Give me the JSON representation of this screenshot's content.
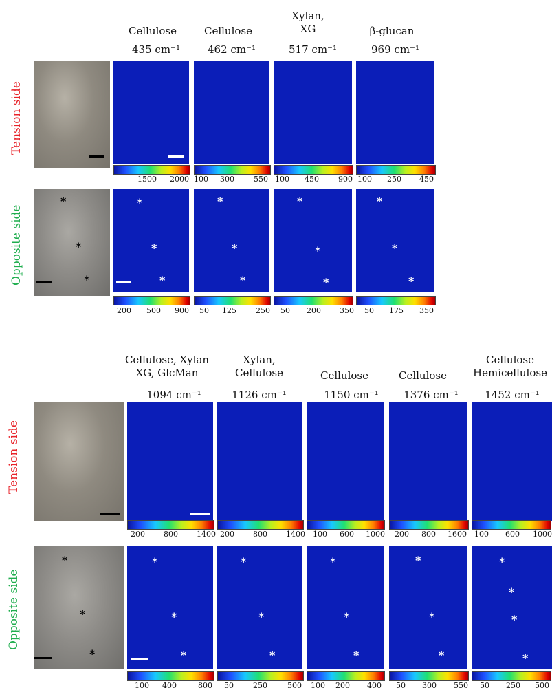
{
  "panel_top": {
    "headers": [
      {
        "line1": "Cellulose",
        "line2": "",
        "wavenumber": "435 cm⁻¹"
      },
      {
        "line1": "Cellulose",
        "line2": "",
        "wavenumber": "462 cm⁻¹"
      },
      {
        "line1": "Xylan,",
        "line2": "XG",
        "wavenumber": "517 cm⁻¹"
      },
      {
        "line1": "β-glucan",
        "line2": "",
        "wavenumber": "969 cm⁻¹"
      }
    ],
    "rows": [
      {
        "label": "Tension side",
        "color": "#e8232a",
        "colorbars": [
          [
            "1500",
            "2000"
          ],
          [
            "100",
            "300",
            "550"
          ],
          [
            "100",
            "450",
            "900"
          ],
          [
            "100",
            "250",
            "450"
          ]
        ]
      },
      {
        "label": "Opposite side",
        "color": "#1fae4e",
        "colorbars": [
          [
            "200",
            "500",
            "900"
          ],
          [
            "50",
            "125",
            "250"
          ],
          [
            "50",
            "200",
            "350"
          ],
          [
            "50",
            "175",
            "350"
          ]
        ]
      }
    ]
  },
  "panel_bottom": {
    "headers": [
      {
        "line1": "Cellulose, Xylan",
        "line2": "XG, GlcMan",
        "wavenumber": "1094 cm⁻¹"
      },
      {
        "line1": "Xylan,",
        "line2": "Cellulose",
        "wavenumber": "1126 cm⁻¹"
      },
      {
        "line1": "Cellulose",
        "line2": "",
        "wavenumber": "1150 cm⁻¹"
      },
      {
        "line1": "Cellulose",
        "line2": "",
        "wavenumber": "1376 cm⁻¹"
      },
      {
        "line1": "Cellulose",
        "line2": "Hemicellulose",
        "wavenumber": "1452 cm⁻¹"
      }
    ],
    "rows": [
      {
        "label": "Tension side",
        "color": "#e8232a",
        "colorbars": [
          [
            "200",
            "800",
            "1400"
          ],
          [
            "200",
            "800",
            "1400"
          ],
          [
            "100",
            "600",
            "1000"
          ],
          [
            "200",
            "800",
            "1600"
          ],
          [
            "100",
            "600",
            "1000"
          ]
        ]
      },
      {
        "label": "Opposite side",
        "color": "#1fae4e",
        "colorbars": [
          [
            "100",
            "400",
            "800"
          ],
          [
            "50",
            "250",
            "500"
          ],
          [
            "100",
            "200",
            "400"
          ],
          [
            "50",
            "300",
            "550"
          ],
          [
            "50",
            "250",
            "500"
          ]
        ]
      }
    ]
  },
  "marker": "*"
}
